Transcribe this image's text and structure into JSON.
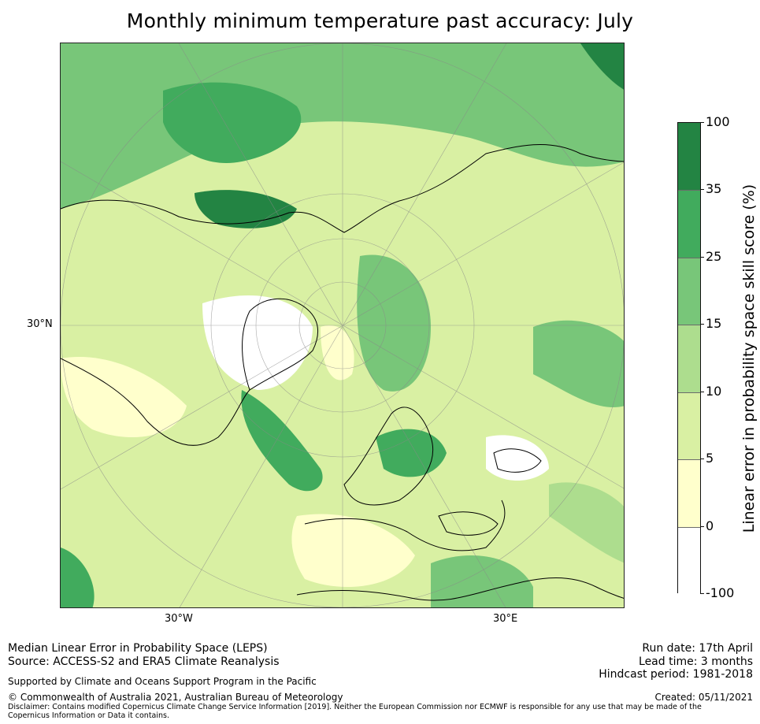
{
  "title": "Monthly minimum temperature past accuracy: July",
  "map": {
    "lat_label": "30°N",
    "lon_labels": [
      "30°W",
      "30°E"
    ]
  },
  "colorbar": {
    "title": "Linear error in probability space skill score (%)",
    "boundaries": [
      "100",
      "35",
      "25",
      "15",
      "10",
      "5",
      "0",
      "-100"
    ],
    "colors": [
      "#238443",
      "#41ab5d",
      "#78c679",
      "#addd8e",
      "#d9f0a3",
      "#ffffcc",
      "#ffffff"
    ]
  },
  "footer": {
    "method": "Median Linear Error in Probability Space (LEPS)",
    "source": "Source: ACCESS-S2 and ERA5 Climate Reanalysis",
    "support": "Supported by Climate and Oceans Support Program in the Pacific",
    "copyright": "© Commonwealth of Australia 2021, Australian Bureau of Meteorology",
    "disclaimer": "Disclaimer: Contains modified Copernicus Climate Change Service Information [2019]. Neither the European Commission nor ECMWF is responsible for any use that may be made of the Copernicus Information or Data it contains.",
    "run_date": "Run date: 17th April",
    "lead_time": "Lead time: 3 months",
    "hindcast": "Hindcast period: 1981-2018",
    "created": "Created: 05/11/2021"
  }
}
